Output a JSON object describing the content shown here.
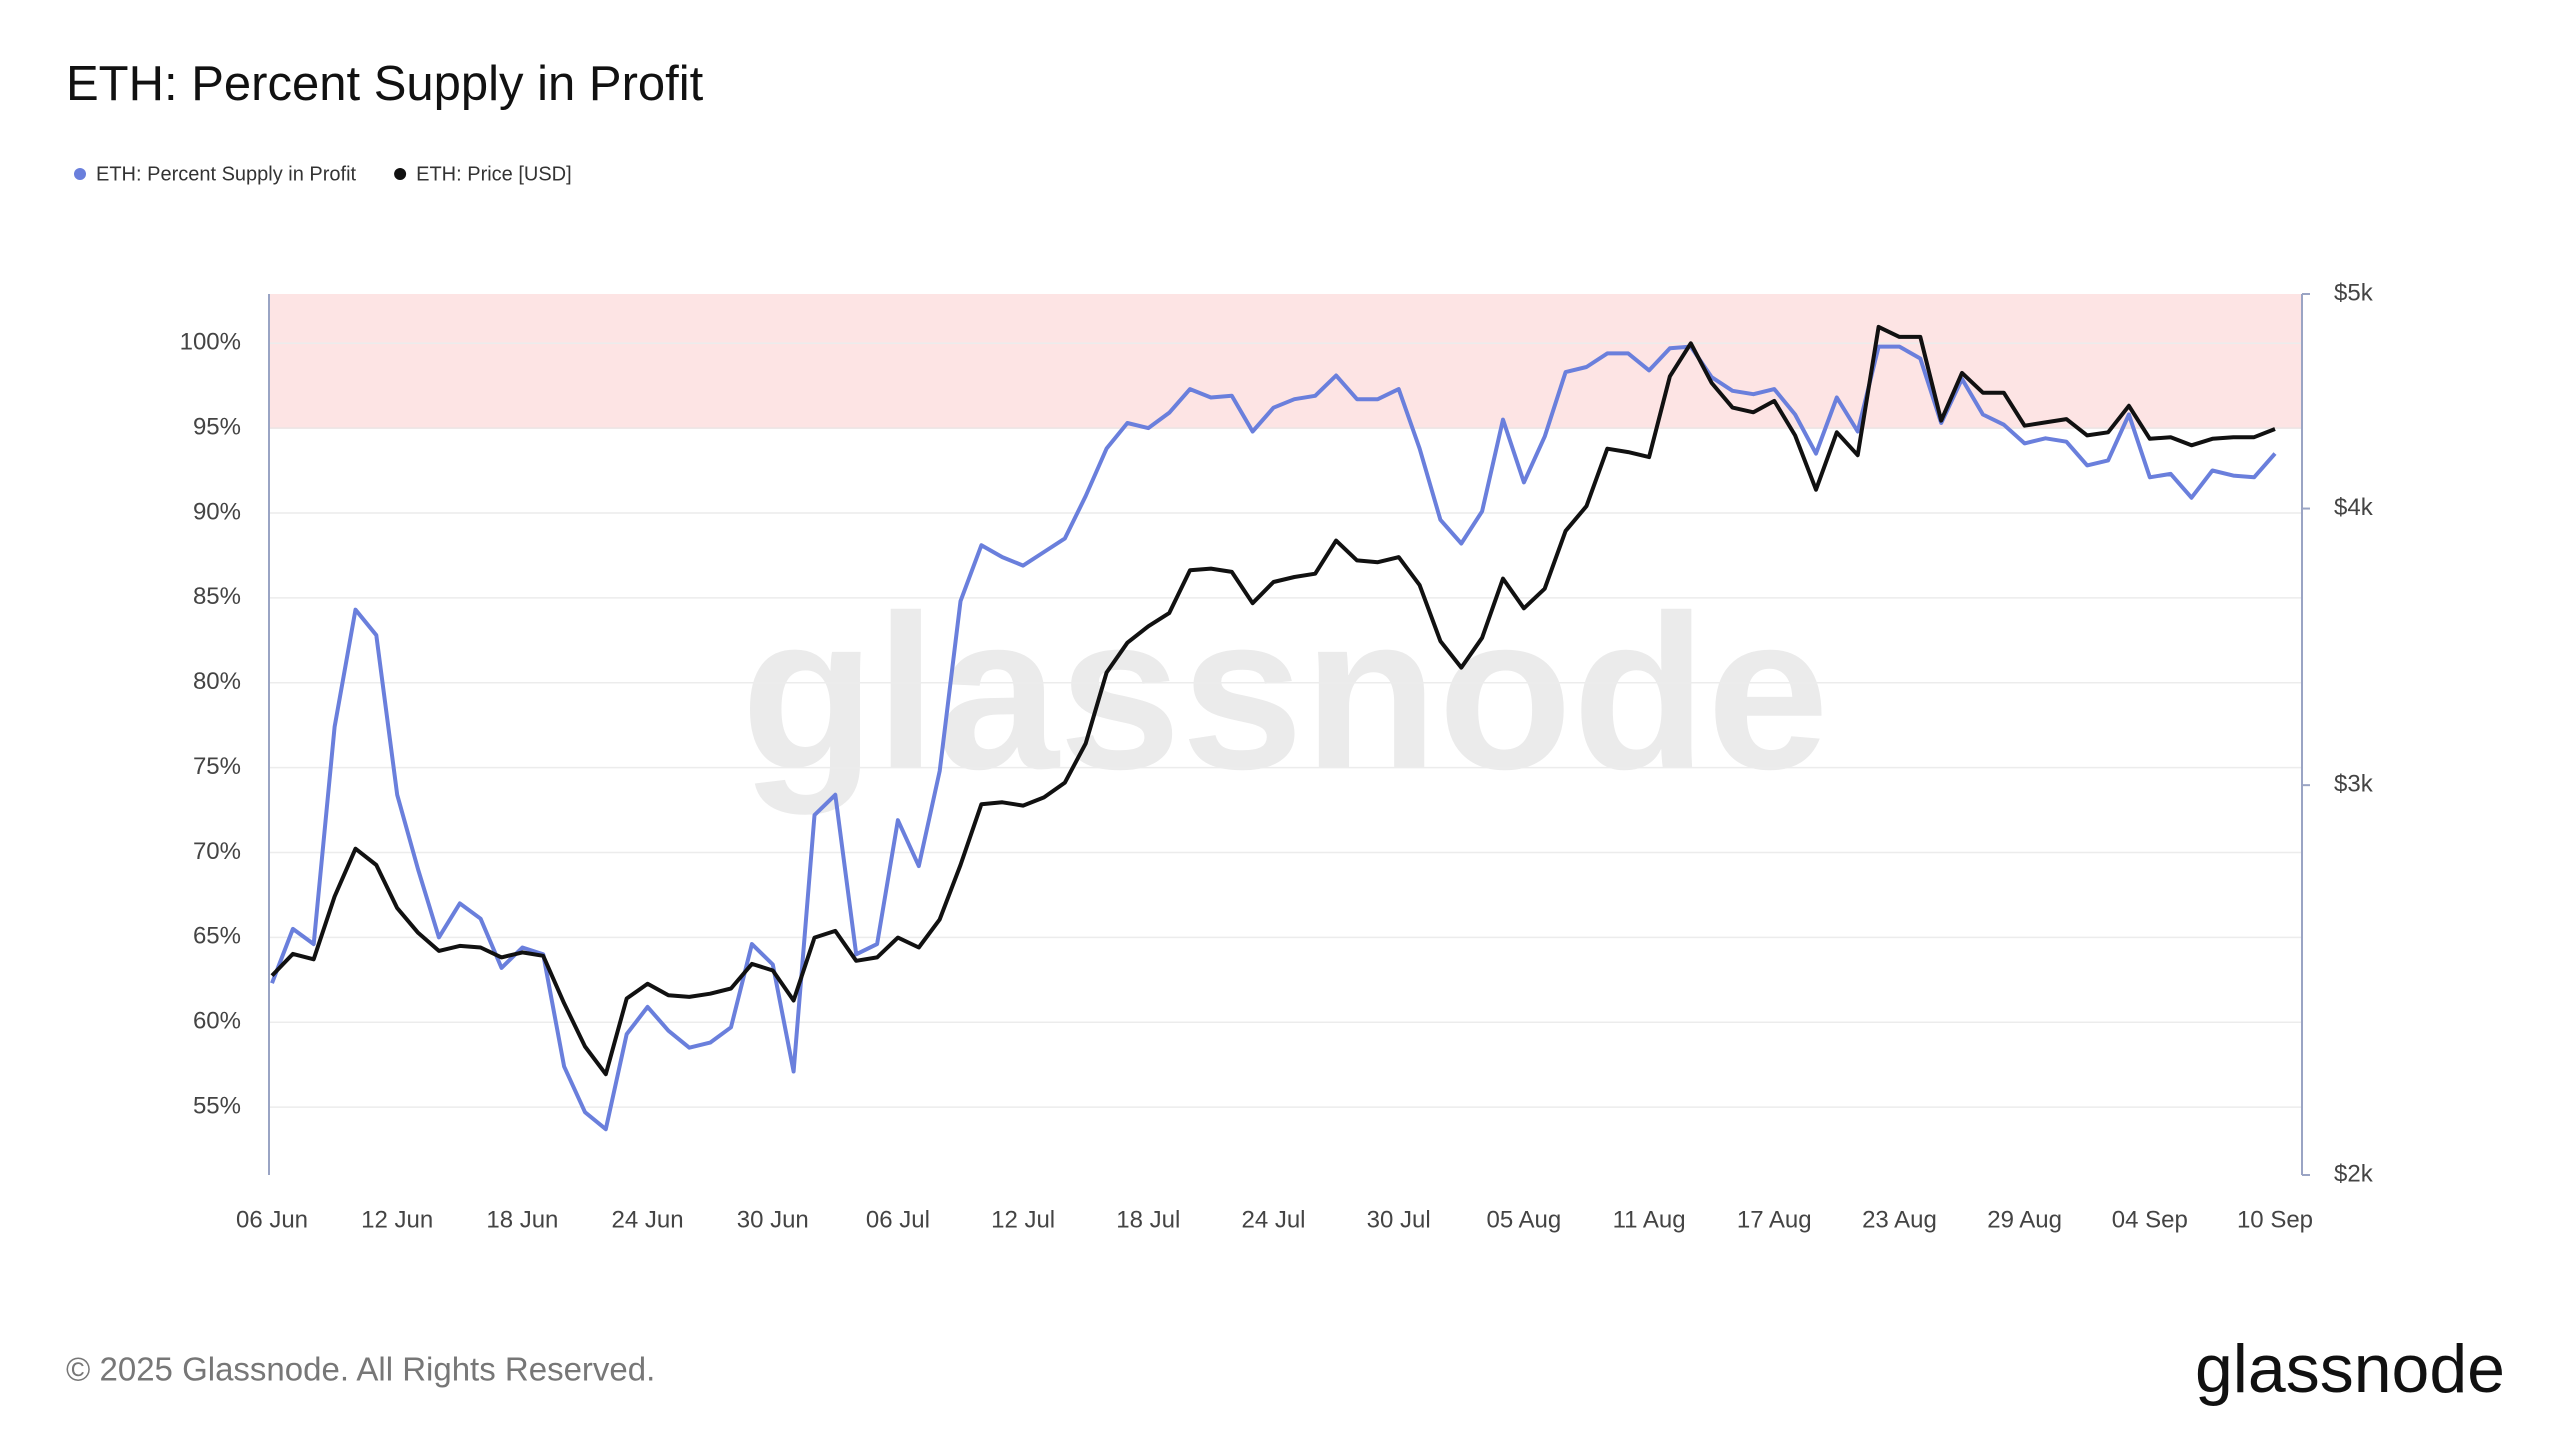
{
  "chart_data": {
    "type": "line",
    "title": "ETH: Percent Supply in Profit",
    "categories": [
      "06 Jun",
      null,
      null,
      null,
      null,
      null,
      "12 Jun",
      null,
      null,
      null,
      null,
      null,
      "18 Jun",
      null,
      null,
      null,
      null,
      null,
      "24 Jun",
      null,
      null,
      null,
      null,
      null,
      "30 Jun",
      null,
      null,
      null,
      null,
      null,
      "06 Jul",
      null,
      null,
      null,
      null,
      null,
      "12 Jul",
      null,
      null,
      null,
      null,
      null,
      "18 Jul",
      null,
      null,
      null,
      null,
      null,
      "24 Jul",
      null,
      null,
      null,
      null,
      null,
      "30 Jul",
      null,
      null,
      null,
      null,
      null,
      "05 Aug",
      null,
      null,
      null,
      null,
      null,
      "11 Aug",
      null,
      null,
      null,
      null,
      null,
      "17 Aug",
      null,
      null,
      null,
      null,
      null,
      "23 Aug",
      null,
      null,
      null,
      null,
      null,
      "29 Aug",
      null,
      null,
      null,
      null,
      null,
      "04 Sep",
      null,
      null,
      null,
      null,
      null,
      "10 Sep"
    ],
    "series": [
      {
        "name": "ETH: Percent Supply in Profit",
        "color": "#6a7fdc",
        "values": [
          62.3,
          65.5,
          64.6,
          77.4,
          84.3,
          82.8,
          73.4,
          69.0,
          65.0,
          67.0,
          66.1,
          63.2,
          64.4,
          64.0,
          57.4,
          54.7,
          53.7,
          59.3,
          60.9,
          59.5,
          58.5,
          58.8,
          59.7,
          64.6,
          63.4,
          57.1,
          72.2,
          73.4,
          64.0,
          64.6,
          71.9,
          69.2,
          74.8,
          84.8,
          88.1,
          87.4,
          86.9,
          87.7,
          88.5,
          91.0,
          93.8,
          95.3,
          95.0,
          95.9,
          97.3,
          96.8,
          96.9,
          94.8,
          96.2,
          96.7,
          96.9,
          98.1,
          96.7,
          96.7,
          97.3,
          93.8,
          89.6,
          88.2,
          90.1,
          95.5,
          91.8,
          94.5,
          98.3,
          98.6,
          99.4,
          99.4,
          98.4,
          99.7,
          99.8,
          98.0,
          97.2,
          97.0,
          97.3,
          95.8,
          93.5,
          96.8,
          94.8,
          99.8,
          99.8,
          99.1,
          95.3,
          97.9,
          95.8,
          95.2,
          94.1,
          94.4,
          94.2,
          92.8,
          93.1,
          95.8,
          92.1,
          92.3,
          90.9,
          92.5,
          92.2,
          92.1,
          93.5
        ]
      },
      {
        "name": "ETH: Price [USD]",
        "color": "#111111",
        "axis": "y2",
        "values": [
          2461,
          2517,
          2503,
          2672,
          2808,
          2761,
          2640,
          2573,
          2525,
          2538,
          2534,
          2508,
          2521,
          2512,
          2391,
          2286,
          2221,
          2403,
          2440,
          2411,
          2407,
          2415,
          2428,
          2491,
          2474,
          2398,
          2560,
          2578,
          2499,
          2508,
          2560,
          2534,
          2609,
          2761,
          2941,
          2947,
          2937,
          2962,
          3008,
          3133,
          3373,
          3479,
          3539,
          3588,
          3751,
          3758,
          3745,
          3625,
          3706,
          3725,
          3738,
          3869,
          3790,
          3783,
          3803,
          3694,
          3485,
          3390,
          3497,
          3719,
          3606,
          3680,
          3908,
          4010,
          4257,
          4242,
          4220,
          4590,
          4750,
          4558,
          4443,
          4421,
          4474,
          4316,
          4079,
          4330,
          4228,
          4832,
          4782,
          4782,
          4383,
          4606,
          4512,
          4512,
          4360,
          4375,
          4390,
          4316,
          4330,
          4451,
          4301,
          4308,
          4272,
          4301,
          4308,
          4308,
          4345
        ]
      }
    ],
    "ylim": [
      51,
      102.9
    ],
    "yticks": [
      {
        "value": 55,
        "label": "55%"
      },
      {
        "value": 60,
        "label": "60%"
      },
      {
        "value": 65,
        "label": "65%"
      },
      {
        "value": 70,
        "label": "70%"
      },
      {
        "value": 75,
        "label": "75%"
      },
      {
        "value": 80,
        "label": "80%"
      },
      {
        "value": 85,
        "label": "85%"
      },
      {
        "value": 90,
        "label": "90%"
      },
      {
        "value": 95,
        "label": "95%"
      },
      {
        "value": 100,
        "label": "100%"
      }
    ],
    "y2lim": [
      2000,
      5000
    ],
    "y2ticks": [
      {
        "value": 2000,
        "label": "$2k"
      },
      {
        "value": 3000,
        "label": "$3k"
      },
      {
        "value": 4000,
        "label": "$4k"
      },
      {
        "value": 5000,
        "label": "$5k"
      }
    ],
    "y2_scale": "log",
    "grid": true,
    "highlight_above": 95,
    "highlight_color": "#fde4e4",
    "legend": "top-left"
  },
  "watermark": "glassnode",
  "footer": {
    "copyright": "© 2025 Glassnode. All Rights Reserved.",
    "logo": "glassnode"
  }
}
